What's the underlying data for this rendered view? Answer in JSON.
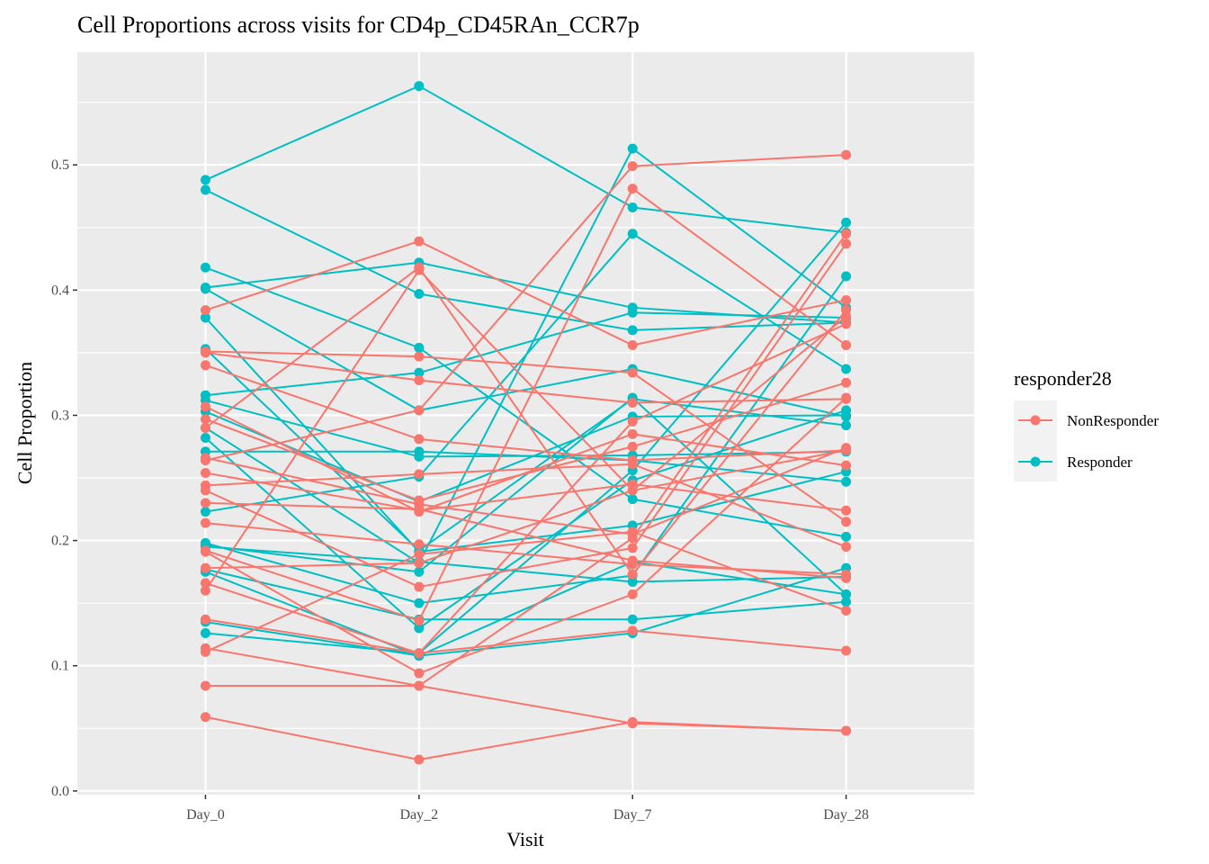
{
  "chart_data": {
    "type": "line",
    "title": "Cell Proportions across visits for CD4p_CD45RAn_CCR7p",
    "xlabel": "Visit",
    "ylabel": "Cell Proportion",
    "categories": [
      "Day_0",
      "Day_2",
      "Day_7",
      "Day_28"
    ],
    "ylim": [
      -0.003,
      0.59
    ],
    "yticks": [
      0.0,
      0.1,
      0.2,
      0.3,
      0.4,
      0.5
    ],
    "ytick_labels": [
      "0.0",
      "0.1",
      "0.2",
      "0.3",
      "0.4",
      "0.5"
    ],
    "grid": true,
    "legend": {
      "title": "responder28",
      "position": "right",
      "entries": [
        {
          "label": "NonResponder",
          "color": "#F8766D"
        },
        {
          "label": "Responder",
          "color": "#00BFC4"
        }
      ]
    },
    "colors": {
      "NonResponder": "#F8766D",
      "Responder": "#00BFC4",
      "panel": "#EBEBEB",
      "grid": "#FFFFFF"
    },
    "series": [
      {
        "group": "Responder",
        "values": [
          0.488,
          0.563,
          0.466,
          0.446
        ]
      },
      {
        "group": "Responder",
        "values": [
          0.48,
          0.397,
          0.368,
          0.374
        ]
      },
      {
        "group": "Responder",
        "values": [
          0.418,
          0.354,
          0.233,
          0.203
        ]
      },
      {
        "group": "Responder",
        "values": [
          0.402,
          0.422,
          0.386,
          0.374
        ]
      },
      {
        "group": "Responder",
        "values": [
          0.401,
          0.304,
          0.337,
          0.299
        ]
      },
      {
        "group": "Responder",
        "values": [
          0.378,
          0.191,
          0.212,
          0.255
        ]
      },
      {
        "group": "Responder",
        "values": [
          0.353,
          0.192,
          0.313,
          0.292
        ]
      },
      {
        "group": "Responder",
        "values": [
          0.316,
          0.334,
          0.382,
          0.378
        ]
      },
      {
        "group": "Responder",
        "values": [
          0.312,
          0.267,
          0.268,
          0.271
        ]
      },
      {
        "group": "Responder",
        "values": [
          0.303,
          0.231,
          0.299,
          0.3
        ]
      },
      {
        "group": "Responder",
        "values": [
          0.29,
          0.182,
          0.513,
          0.386
        ]
      },
      {
        "group": "Responder",
        "values": [
          0.282,
          0.13,
          0.248,
          0.304
        ]
      },
      {
        "group": "Responder",
        "values": [
          0.271,
          0.271,
          0.264,
          0.247
        ]
      },
      {
        "group": "Responder",
        "values": [
          0.223,
          0.251,
          0.445,
          0.337
        ]
      },
      {
        "group": "Responder",
        "values": [
          0.198,
          0.15,
          0.172,
          0.411
        ]
      },
      {
        "group": "Responder",
        "values": [
          0.195,
          0.183,
          0.167,
          0.171
        ]
      },
      {
        "group": "Responder",
        "values": [
          0.177,
          0.137,
          0.137,
          0.151
        ]
      },
      {
        "group": "Responder",
        "values": [
          0.175,
          0.108,
          0.126,
          0.178
        ]
      },
      {
        "group": "Responder",
        "values": [
          0.135,
          0.108,
          0.183,
          0.157
        ]
      },
      {
        "group": "Responder",
        "values": [
          0.126,
          0.11,
          0.256,
          0.454
        ]
      },
      {
        "group": "Responder",
        "values": [
          0.196,
          0.175,
          0.314,
          0.157
        ]
      },
      {
        "group": "NonResponder",
        "values": [
          0.384,
          0.439,
          0.356,
          0.392
        ]
      },
      {
        "group": "NonResponder",
        "values": [
          0.351,
          0.347,
          0.334,
          0.215
        ]
      },
      {
        "group": "NonResponder",
        "values": [
          0.35,
          0.328,
          0.31,
          0.313
        ]
      },
      {
        "group": "NonResponder",
        "values": [
          0.34,
          0.281,
          0.264,
          0.272
        ]
      },
      {
        "group": "NonResponder",
        "values": [
          0.307,
          0.223,
          0.285,
          0.26
        ]
      },
      {
        "group": "NonResponder",
        "values": [
          0.297,
          0.232,
          0.275,
          0.326
        ]
      },
      {
        "group": "NonResponder",
        "values": [
          0.29,
          0.418,
          0.173,
          0.384
        ]
      },
      {
        "group": "NonResponder",
        "values": [
          0.266,
          0.229,
          0.205,
          0.274
        ]
      },
      {
        "group": "NonResponder",
        "values": [
          0.264,
          0.304,
          0.499,
          0.508
        ]
      },
      {
        "group": "NonResponder",
        "values": [
          0.254,
          0.224,
          0.245,
          0.224
        ]
      },
      {
        "group": "NonResponder",
        "values": [
          0.244,
          0.253,
          0.261,
          0.195
        ]
      },
      {
        "group": "NonResponder",
        "values": [
          0.24,
          0.163,
          0.194,
          0.437
        ]
      },
      {
        "group": "NonResponder",
        "values": [
          0.23,
          0.225,
          0.184,
          0.17
        ]
      },
      {
        "group": "NonResponder",
        "values": [
          0.214,
          0.197,
          0.181,
          0.173
        ]
      },
      {
        "group": "NonResponder",
        "values": [
          0.192,
          0.136,
          0.481,
          0.356
        ]
      },
      {
        "group": "NonResponder",
        "values": [
          0.191,
          0.094,
          0.157,
          0.314
        ]
      },
      {
        "group": "NonResponder",
        "values": [
          0.178,
          0.182,
          0.24,
          0.272
        ]
      },
      {
        "group": "NonResponder",
        "values": [
          0.166,
          0.11,
          0.295,
          0.373
        ]
      },
      {
        "group": "NonResponder",
        "values": [
          0.16,
          0.416,
          0.24,
          0.379
        ]
      },
      {
        "group": "NonResponder",
        "values": [
          0.137,
          0.11,
          0.128,
          0.112
        ]
      },
      {
        "group": "NonResponder",
        "values": [
          0.114,
          0.084,
          0.202,
          0.445
        ]
      },
      {
        "group": "NonResponder",
        "values": [
          0.111,
          0.189,
          0.207,
          0.144
        ]
      },
      {
        "group": "NonResponder",
        "values": [
          0.084,
          0.084,
          0.054,
          0.048
        ]
      },
      {
        "group": "NonResponder",
        "values": [
          0.059,
          0.025,
          0.055,
          0.048
        ]
      }
    ]
  }
}
